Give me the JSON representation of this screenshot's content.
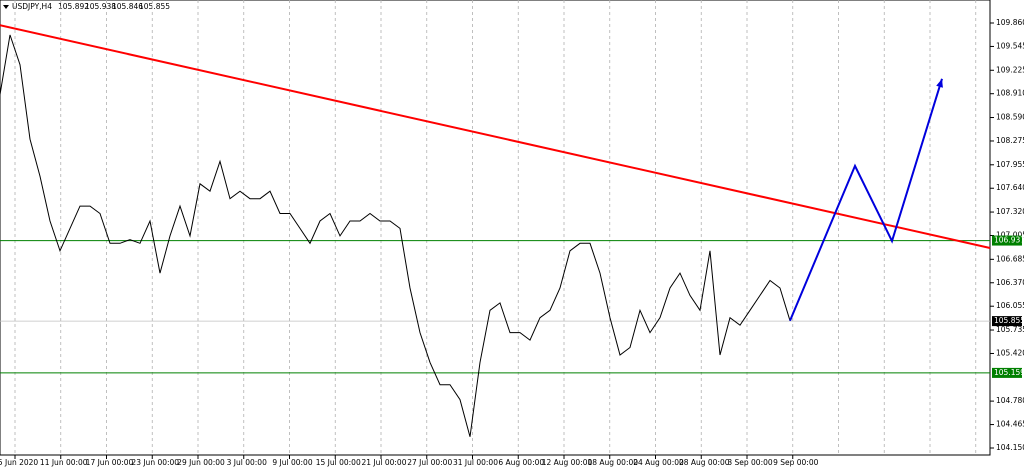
{
  "chart_data": {
    "type": "line",
    "symbol": "USDJPY,H4",
    "ohlc": [
      105.892,
      105.938,
      105.846,
      105.855
    ],
    "categories": [
      "5 Jun 2020",
      "11 Jun 00:00",
      "17 Jun 00:00",
      "23 Jun 00:00",
      "29 Jun 00:00",
      "3 Jul 00:00",
      "9 Jul 00:00",
      "15 Jul 00:00",
      "21 Jul 00:00",
      "27 Jul 00:00",
      "31 Jul 00:00",
      "6 Aug 00:00",
      "12 Aug 00:00",
      "18 Aug 00:00",
      "24 Aug 00:00",
      "28 Aug 00:00",
      "3 Sep 00:00",
      "9 Sep 00:00"
    ],
    "ylim": [
      104.056,
      110.169
    ],
    "yticks": [
      {
        "value": 109.86,
        "label": "109.860"
      },
      109.545,
      109.225,
      {
        "value": 108.91,
        "label": "108.910"
      },
      {
        "value": 108.59,
        "label": "108.590"
      },
      108.275,
      107.955,
      {
        "value": 107.64,
        "label": "107.640"
      },
      {
        "value": 107.32,
        "label": "107.320"
      },
      107.005,
      106.685,
      {
        "value": 106.37,
        "label": "106.370"
      },
      106.055,
      105.735,
      {
        "value": 105.42,
        "label": "105.420"
      },
      {
        "value": 104.78,
        "label": "104.780"
      },
      104.465,
      {
        "value": 104.15,
        "label": "104.150"
      }
    ],
    "price": {
      "color": "#000000",
      "values": [
        108.9,
        109.7,
        109.3,
        108.3,
        107.8,
        107.2,
        106.8,
        107.1,
        107.4,
        107.4,
        107.3,
        106.9,
        106.9,
        106.95,
        106.9,
        107.2,
        106.5,
        107.0,
        107.4,
        107.0,
        107.7,
        107.6,
        108.0,
        107.5,
        107.6,
        107.5,
        107.5,
        107.6,
        107.3,
        107.3,
        107.1,
        106.9,
        107.2,
        107.3,
        107.0,
        107.2,
        107.2,
        107.3,
        107.2,
        107.2,
        107.1,
        106.3,
        105.7,
        105.3,
        105.0,
        105.0,
        104.8,
        104.3,
        105.3,
        106.0,
        106.1,
        105.7,
        105.7,
        105.6,
        105.9,
        106.0,
        106.3,
        106.8,
        106.9,
        106.9,
        106.5,
        105.9,
        105.4,
        105.5,
        106.0,
        105.7,
        105.9,
        106.3,
        106.5,
        106.2,
        106.0,
        106.8,
        105.4,
        105.9,
        105.8,
        106.0,
        106.2,
        106.4,
        106.3,
        105.86
      ]
    },
    "current_price": 105.855,
    "levels": [
      {
        "value": 106.937,
        "color": "#008000"
      },
      {
        "value": 105.159,
        "color": "#008000"
      }
    ],
    "trendline": {
      "color": "#ff0000",
      "values": [
        109.83,
        106.837
      ]
    },
    "projection": {
      "color": "#0000dd",
      "values": [
        105.86,
        107.94,
        106.93,
        109.11
      ]
    }
  }
}
